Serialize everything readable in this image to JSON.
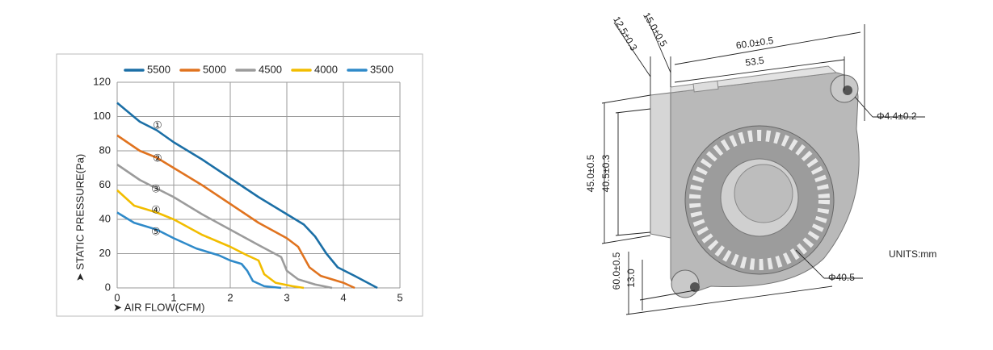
{
  "chart_data": {
    "type": "line",
    "y_label": "➤ STATIC PRESSURE(Pa)",
    "x_label": "➤ AIR FLOW(CFM)",
    "xlim": [
      0,
      5
    ],
    "xticks": [
      0,
      1,
      2,
      3,
      4,
      5
    ],
    "ylim": [
      0,
      120
    ],
    "yticks": [
      0,
      20,
      40,
      60,
      80,
      100,
      120
    ],
    "grid": true,
    "legend": "top",
    "annotations": [
      "①",
      "②",
      "③",
      "④",
      "⑤"
    ],
    "series": [
      {
        "name": "5500",
        "color": "#1b6fa6",
        "x": [
          0,
          0.4,
          0.7,
          1,
          1.5,
          2,
          2.5,
          3,
          3.3,
          3.5,
          3.7,
          3.9,
          4.2,
          4.6
        ],
        "values": [
          108,
          97,
          92,
          85,
          75,
          64,
          53,
          43,
          37,
          30,
          20,
          12,
          7,
          0
        ]
      },
      {
        "name": "5000",
        "color": "#e0731f",
        "x": [
          0,
          0.4,
          0.7,
          1,
          1.5,
          2,
          2.5,
          3,
          3.2,
          3.4,
          3.6,
          4,
          4.2
        ],
        "values": [
          89,
          80,
          76,
          70,
          60,
          49,
          38,
          29,
          24,
          12,
          7,
          3,
          0
        ]
      },
      {
        "name": "4500",
        "color": "#9b9b9b",
        "x": [
          0,
          0.4,
          0.7,
          1,
          1.5,
          2,
          2.5,
          2.9,
          3,
          3.2,
          3.5,
          3.8
        ],
        "values": [
          72,
          63,
          58,
          53,
          43,
          34,
          25,
          18,
          10,
          5,
          2,
          0
        ]
      },
      {
        "name": "4000",
        "color": "#f2bd00",
        "x": [
          0,
          0.3,
          0.7,
          1,
          1.5,
          2,
          2.3,
          2.5,
          2.6,
          2.8,
          3.1,
          3.3
        ],
        "values": [
          57,
          48,
          44,
          40,
          31,
          24,
          19,
          16,
          8,
          3,
          1,
          0
        ]
      },
      {
        "name": "3500",
        "color": "#2f8ac9",
        "x": [
          0,
          0.3,
          0.7,
          1,
          1.4,
          1.8,
          2,
          2.2,
          2.3,
          2.4,
          2.6,
          2.9
        ],
        "values": [
          44,
          38,
          34,
          29,
          23,
          19,
          16,
          14,
          10,
          4,
          1,
          0
        ]
      }
    ]
  },
  "drawing": {
    "labels": [
      "12.5±0.3",
      "15.0±0.5",
      "60.0±0.5",
      "53.5",
      "Φ4.4±0.2",
      "45.0±0.5",
      "40.5±0.3",
      "60.0±0.5",
      "13.0",
      "Φ40.5"
    ],
    "units": "UNITS:mm"
  }
}
